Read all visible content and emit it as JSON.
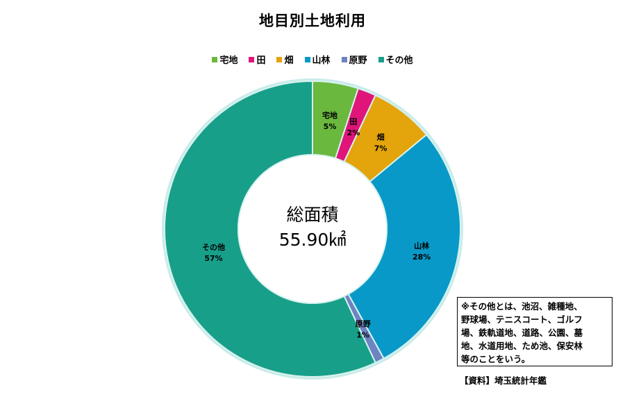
{
  "chart_data": {
    "type": "pie",
    "title": "地目別土地利用",
    "center_label": "総面積",
    "center_value": "55.90㎢",
    "legend_position": "top",
    "categories": [
      "宅地",
      "田",
      "畑",
      "山林",
      "原野",
      "その他"
    ],
    "values": [
      5,
      2,
      7,
      28,
      1,
      57
    ],
    "percent_labels": [
      "5%",
      "2%",
      "7%",
      "28%",
      "1%",
      "57%"
    ],
    "colors": [
      "#6AB83E",
      "#E0157A",
      "#E3A40C",
      "#0899C8",
      "#6E83C2",
      "#179F8A"
    ]
  },
  "note": {
    "lines": [
      "※その他とは、池沼、雑種地、",
      "野球場、テニスコート、ゴルフ",
      "場、鉄軌道地、道路、公園、墓",
      "地、水道用地、ため池、保安林",
      "等のことをいう。"
    ]
  },
  "source": "【資料】埼玉統計年鑑"
}
